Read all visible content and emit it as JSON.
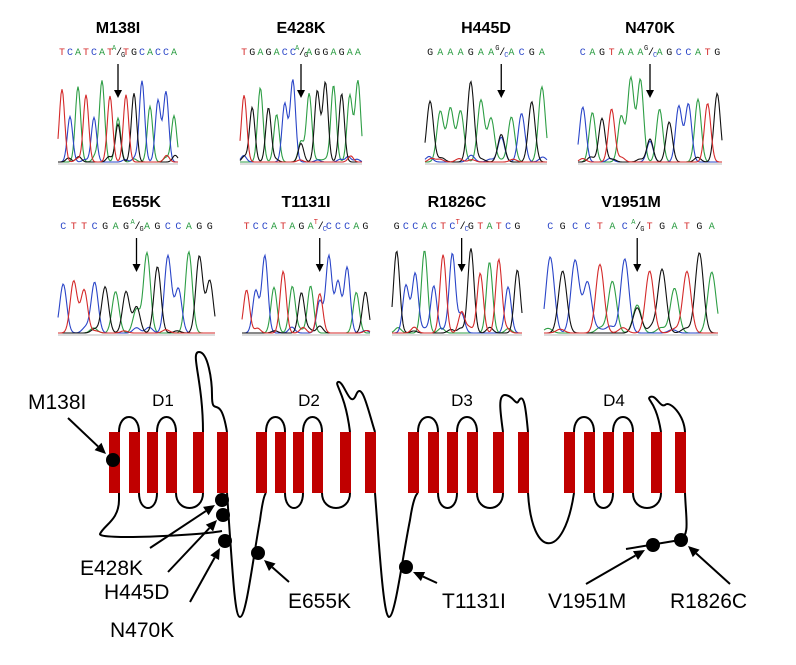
{
  "colors": {
    "A": "#2e9e45",
    "C": "#2a45c8",
    "G": "#111111",
    "T": "#d42a2a",
    "segment": "#c00000",
    "line": "#000000"
  },
  "chromatograms": [
    {
      "title": "M138I",
      "sequence": [
        "T",
        "C",
        "A",
        "T",
        "C",
        "A",
        "T",
        "A/G",
        "T",
        "G",
        "C",
        "A",
        "C",
        "C",
        "A"
      ],
      "variant_index": 7
    },
    {
      "title": "E428K",
      "sequence": [
        "T",
        "G",
        "A",
        "G",
        "A",
        "C",
        "C",
        "A/G",
        "A",
        "G",
        "G",
        "A",
        "G",
        "A",
        "A"
      ],
      "variant_index": 7
    },
    {
      "title": "H445D",
      "sequence": [
        "G",
        "A",
        "A",
        "A",
        "G",
        "A",
        "A",
        "G/C",
        "A",
        "C",
        "G",
        "A"
      ],
      "variant_index": 7
    },
    {
      "title": "N470K",
      "sequence": [
        "C",
        "A",
        "G",
        "T",
        "A",
        "A",
        "A",
        "G/C",
        "A",
        "G",
        "C",
        "C",
        "A",
        "T",
        "G"
      ],
      "variant_index": 7
    },
    {
      "title": "E655K",
      "sequence": [
        "C",
        "T",
        "T",
        "C",
        "G",
        "A",
        "G",
        "A/G",
        "A",
        "G",
        "C",
        "C",
        "A",
        "G",
        "G"
      ],
      "variant_index": 7
    },
    {
      "title": "T1131I",
      "sequence": [
        "T",
        "C",
        "C",
        "A",
        "T",
        "A",
        "G",
        "A",
        "T/C",
        "C",
        "C",
        "C",
        "A",
        "G"
      ],
      "variant_index": 8
    },
    {
      "title": "R1826C",
      "sequence": [
        "G",
        "C",
        "C",
        "A",
        "C",
        "T",
        "C",
        "T/C",
        "G",
        "T",
        "A",
        "T",
        "C",
        "G"
      ],
      "variant_index": 7
    },
    {
      "title": "V1951M",
      "sequence": [
        "C",
        "G",
        "C",
        "C",
        "T",
        "A",
        "C",
        "A/G",
        "T",
        "G",
        "A",
        "T",
        "G",
        "A"
      ],
      "variant_index": 7
    }
  ],
  "topology": {
    "domains": [
      "D1",
      "D2",
      "D3",
      "D4"
    ],
    "mutations": [
      "M138I",
      "E428K",
      "H445D",
      "N470K",
      "E655K",
      "T1131I",
      "V1951M",
      "R1826C"
    ]
  }
}
